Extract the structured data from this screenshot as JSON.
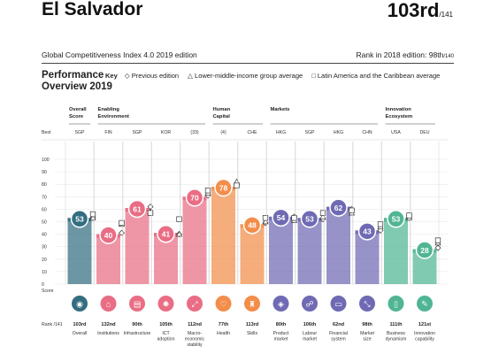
{
  "header": {
    "country": "El Salvador",
    "rank": "103rd",
    "rank_total": "/141",
    "edition": "Global Competitiveness Index 4.0 2019 edition",
    "rank_2018_label": "Rank in 2018 edition: 98th",
    "rank_2018_total": "/140"
  },
  "performance": {
    "title_line1": "Performance",
    "title_line2": "Overview 2019",
    "key_label": "Key",
    "legend_previous": "◇ Previous edition",
    "legend_income": "△ Lower-middle-income group average",
    "legend_region": "□ Latin America and the Caribbean average"
  },
  "chart_data": {
    "type": "bar",
    "ylim": [
      0,
      100
    ],
    "yticks": [
      0,
      10,
      20,
      30,
      40,
      50,
      60,
      70,
      80,
      90,
      100
    ],
    "y_top_label": "Best",
    "y_bottom_label": "Score",
    "rank_row_label": "Rank /141",
    "groups": [
      {
        "label": "Overall\nScore",
        "columns": 1
      },
      {
        "label": "Enabling\nEnvironment",
        "columns": 4
      },
      {
        "label": "Human\nCapital",
        "columns": 2
      },
      {
        "label": "Markets",
        "columns": 4
      },
      {
        "label": "Innovation\nEcosystem",
        "columns": 2
      }
    ],
    "categories": [
      "Overall",
      "Institutions",
      "Infrastructure",
      "ICT\nadoption",
      "Macro-\neconomic\nstability",
      "Health",
      "Skills",
      "Product\nmarket",
      "Labour\nmarket",
      "Financial\nsystem",
      "Market\nsize",
      "Business\ndynamism",
      "Innovation\ncapability"
    ],
    "best": [
      "SGP",
      "FIN",
      "SGP",
      "KOR",
      "(33)",
      "(4)",
      "CHE",
      "HKG",
      "SGP",
      "HKG",
      "CHN",
      "USA",
      "DEU"
    ],
    "values": [
      53,
      40,
      61,
      41,
      70,
      78,
      48,
      54,
      53,
      62,
      43,
      53,
      28
    ],
    "ranks": [
      "103rd",
      "132nd",
      "90th",
      "105th",
      "112nd",
      "77th",
      "113rd",
      "80th",
      "106th",
      "62nd",
      "98th",
      "111th",
      "121st"
    ],
    "previous_edition": [
      53,
      41,
      62,
      40,
      71,
      80,
      49,
      54,
      52,
      60,
      43,
      53,
      29
    ],
    "income_group_avg": [
      53,
      48,
      58,
      40,
      73,
      82,
      50,
      51,
      54,
      57,
      46,
      53,
      33
    ],
    "region_avg": [
      56,
      49,
      57,
      52,
      75,
      79,
      53,
      53,
      57,
      59,
      48,
      55,
      35
    ],
    "colors": {
      "overall": "#336e80",
      "enabling": "#e96d84",
      "human": "#f38d4a",
      "markets": "#6f6ab3",
      "innovation": "#50b594"
    },
    "bar_colors": [
      "#336e80",
      "#e96d84",
      "#e96d84",
      "#e96d84",
      "#e96d84",
      "#f38d4a",
      "#f38d4a",
      "#6f6ab3",
      "#6f6ab3",
      "#6f6ab3",
      "#6f6ab3",
      "#50b594",
      "#50b594"
    ],
    "icons": [
      "overall-icon",
      "institutions-icon",
      "infrastructure-icon",
      "ict-icon",
      "macro-icon",
      "health-icon",
      "skills-icon",
      "product-market-icon",
      "labour-market-icon",
      "financial-system-icon",
      "market-size-icon",
      "business-dynamism-icon",
      "innovation-icon"
    ],
    "icon_glyphs": [
      "◉",
      "⌂",
      "▤",
      "✺",
      "⤢",
      "♡",
      "♜",
      "◈",
      "☍",
      "▭",
      "⤡",
      "▯",
      "✎"
    ],
    "grid": true
  }
}
